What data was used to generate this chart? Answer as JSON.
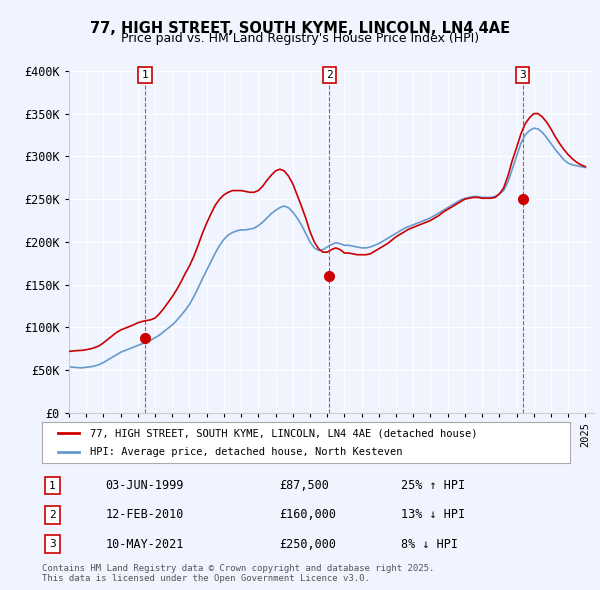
{
  "title": "77, HIGH STREET, SOUTH KYME, LINCOLN, LN4 4AE",
  "subtitle": "Price paid vs. HM Land Registry's House Price Index (HPI)",
  "ylabel_ticks": [
    "£0",
    "£50K",
    "£100K",
    "£150K",
    "£200K",
    "£250K",
    "£300K",
    "£350K",
    "£400K"
  ],
  "ylim": [
    0,
    400000
  ],
  "ytick_vals": [
    0,
    50000,
    100000,
    150000,
    200000,
    250000,
    300000,
    350000,
    400000
  ],
  "xlim_start": 1995.0,
  "xlim_end": 2025.5,
  "background_color": "#f0f4ff",
  "plot_bg": "#f0f4ff",
  "legend_label_red": "77, HIGH STREET, SOUTH KYME, LINCOLN, LN4 4AE (detached house)",
  "legend_label_blue": "HPI: Average price, detached house, North Kesteven",
  "sale_dates_label": [
    "03-JUN-1999",
    "12-FEB-2010",
    "10-MAY-2021"
  ],
  "sale_prices_label": [
    "£87,500",
    "£160,000",
    "£250,000"
  ],
  "sale_pct_label": [
    "25% ↑ HPI",
    "13% ↓ HPI",
    "8% ↓ HPI"
  ],
  "sale_years": [
    1999.42,
    2010.12,
    2021.36
  ],
  "sale_prices": [
    87500,
    160000,
    250000
  ],
  "footnote": "Contains HM Land Registry data © Crown copyright and database right 2025.\nThis data is licensed under the Open Government Licence v3.0.",
  "red_color": "#cc0000",
  "blue_color": "#6699cc",
  "marker_color": "#cc0000",
  "hpi_years": [
    1995.0,
    1995.25,
    1995.5,
    1995.75,
    1996.0,
    1996.25,
    1996.5,
    1996.75,
    1997.0,
    1997.25,
    1997.5,
    1997.75,
    1998.0,
    1998.25,
    1998.5,
    1998.75,
    1999.0,
    1999.25,
    1999.5,
    1999.75,
    2000.0,
    2000.25,
    2000.5,
    2000.75,
    2001.0,
    2001.25,
    2001.5,
    2001.75,
    2002.0,
    2002.25,
    2002.5,
    2002.75,
    2003.0,
    2003.25,
    2003.5,
    2003.75,
    2004.0,
    2004.25,
    2004.5,
    2004.75,
    2005.0,
    2005.25,
    2005.5,
    2005.75,
    2006.0,
    2006.25,
    2006.5,
    2006.75,
    2007.0,
    2007.25,
    2007.5,
    2007.75,
    2008.0,
    2008.25,
    2008.5,
    2008.75,
    2009.0,
    2009.25,
    2009.5,
    2009.75,
    2010.0,
    2010.25,
    2010.5,
    2010.75,
    2011.0,
    2011.25,
    2011.5,
    2011.75,
    2012.0,
    2012.25,
    2012.5,
    2012.75,
    2013.0,
    2013.25,
    2013.5,
    2013.75,
    2014.0,
    2014.25,
    2014.5,
    2014.75,
    2015.0,
    2015.25,
    2015.5,
    2015.75,
    2016.0,
    2016.25,
    2016.5,
    2016.75,
    2017.0,
    2017.25,
    2017.5,
    2017.75,
    2018.0,
    2018.25,
    2018.5,
    2018.75,
    2019.0,
    2019.25,
    2019.5,
    2019.75,
    2020.0,
    2020.25,
    2020.5,
    2020.75,
    2021.0,
    2021.25,
    2021.5,
    2021.75,
    2022.0,
    2022.25,
    2022.5,
    2022.75,
    2023.0,
    2023.25,
    2023.5,
    2023.75,
    2024.0,
    2024.25,
    2024.5,
    2024.75,
    2025.0
  ],
  "hpi_values": [
    54000,
    53500,
    53000,
    52800,
    53500,
    54000,
    55000,
    56500,
    59000,
    62000,
    65000,
    68000,
    71000,
    73000,
    75000,
    77000,
    79000,
    81000,
    83000,
    85000,
    88000,
    91000,
    95000,
    99000,
    103000,
    108000,
    114000,
    120000,
    127000,
    136000,
    146000,
    157000,
    167000,
    177000,
    187000,
    196000,
    203000,
    208000,
    211000,
    213000,
    214000,
    214000,
    215000,
    216000,
    219000,
    223000,
    228000,
    233000,
    237000,
    240000,
    242000,
    240000,
    235000,
    228000,
    220000,
    210000,
    200000,
    193000,
    190000,
    191000,
    194000,
    197000,
    199000,
    198000,
    196000,
    196000,
    195000,
    194000,
    193000,
    193000,
    194000,
    196000,
    198000,
    201000,
    204000,
    207000,
    210000,
    213000,
    216000,
    218000,
    220000,
    222000,
    224000,
    226000,
    228000,
    231000,
    234000,
    237000,
    240000,
    243000,
    246000,
    249000,
    251000,
    252000,
    253000,
    253000,
    252000,
    252000,
    252000,
    253000,
    256000,
    260000,
    270000,
    285000,
    300000,
    315000,
    325000,
    330000,
    333000,
    332000,
    328000,
    322000,
    315000,
    308000,
    302000,
    296000,
    292000,
    290000,
    289000,
    288000,
    287000
  ],
  "red_years": [
    1995.0,
    1995.25,
    1995.5,
    1995.75,
    1996.0,
    1996.25,
    1996.5,
    1996.75,
    1997.0,
    1997.25,
    1997.5,
    1997.75,
    1998.0,
    1998.25,
    1998.5,
    1998.75,
    1999.0,
    1999.25,
    1999.5,
    1999.75,
    2000.0,
    2000.25,
    2000.5,
    2000.75,
    2001.0,
    2001.25,
    2001.5,
    2001.75,
    2002.0,
    2002.25,
    2002.5,
    2002.75,
    2003.0,
    2003.25,
    2003.5,
    2003.75,
    2004.0,
    2004.25,
    2004.5,
    2004.75,
    2005.0,
    2005.25,
    2005.5,
    2005.75,
    2006.0,
    2006.25,
    2006.5,
    2006.75,
    2007.0,
    2007.25,
    2007.5,
    2007.75,
    2008.0,
    2008.25,
    2008.5,
    2008.75,
    2009.0,
    2009.25,
    2009.5,
    2009.75,
    2010.0,
    2010.25,
    2010.5,
    2010.75,
    2011.0,
    2011.25,
    2011.5,
    2011.75,
    2012.0,
    2012.25,
    2012.5,
    2012.75,
    2013.0,
    2013.25,
    2013.5,
    2013.75,
    2014.0,
    2014.25,
    2014.5,
    2014.75,
    2015.0,
    2015.25,
    2015.5,
    2015.75,
    2016.0,
    2016.25,
    2016.5,
    2016.75,
    2017.0,
    2017.25,
    2017.5,
    2017.75,
    2018.0,
    2018.25,
    2018.5,
    2018.75,
    2019.0,
    2019.25,
    2019.5,
    2019.75,
    2020.0,
    2020.25,
    2020.5,
    2020.75,
    2021.0,
    2021.25,
    2021.5,
    2021.75,
    2022.0,
    2022.25,
    2022.5,
    2022.75,
    2023.0,
    2023.25,
    2023.5,
    2023.75,
    2024.0,
    2024.25,
    2024.5,
    2024.75,
    2025.0
  ],
  "red_values": [
    72000,
    72500,
    73000,
    73200,
    74000,
    75000,
    76500,
    78500,
    82000,
    86000,
    90000,
    94000,
    97000,
    99000,
    101000,
    103000,
    105500,
    107000,
    108000,
    109000,
    111000,
    116000,
    122000,
    129000,
    136000,
    144000,
    153000,
    163000,
    172000,
    183000,
    196000,
    210000,
    222000,
    233000,
    243000,
    250000,
    255000,
    258000,
    260000,
    260000,
    260000,
    259000,
    258000,
    258000,
    260000,
    265000,
    272000,
    278000,
    283000,
    285000,
    283000,
    277000,
    268000,
    255000,
    242000,
    228000,
    212000,
    200000,
    192000,
    188000,
    188000,
    191000,
    193000,
    191000,
    187000,
    187000,
    186000,
    185000,
    185000,
    185000,
    186000,
    189000,
    192000,
    195000,
    198000,
    202000,
    206000,
    209000,
    212000,
    215000,
    217000,
    219000,
    221000,
    223000,
    225000,
    228000,
    231000,
    235000,
    238000,
    241000,
    244000,
    247000,
    250000,
    251000,
    252000,
    252000,
    251000,
    251000,
    251000,
    252000,
    256000,
    263000,
    277000,
    295000,
    310000,
    326000,
    338000,
    345000,
    350000,
    350000,
    346000,
    340000,
    332000,
    323000,
    315000,
    308000,
    302000,
    297000,
    293000,
    290000,
    288000
  ]
}
